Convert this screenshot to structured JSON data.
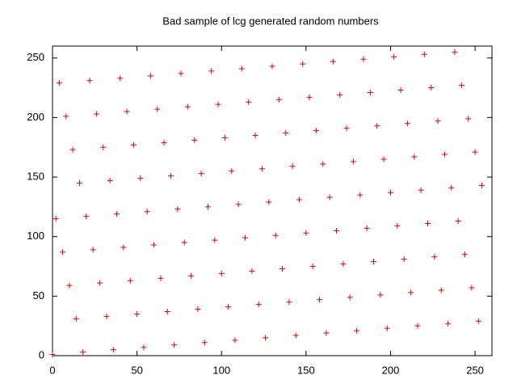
{
  "chart_data": {
    "type": "scatter",
    "title": "Bad sample of lcg generated random numbers",
    "color": "#e00000",
    "marker": "+",
    "xlim": [
      0,
      260
    ],
    "ylim": [
      0,
      260
    ],
    "xticks": [
      0,
      50,
      100,
      150,
      200,
      250
    ],
    "yticks": [
      0,
      50,
      100,
      150,
      200,
      250
    ],
    "x": [
      0,
      2,
      4,
      6,
      8,
      10,
      12,
      14,
      16,
      18,
      20,
      22,
      24,
      26,
      28,
      30,
      32,
      34,
      36,
      38,
      40,
      42,
      44,
      46,
      48,
      50,
      52,
      54,
      56,
      58,
      60,
      62,
      64,
      66,
      68,
      70,
      72,
      74,
      76,
      78,
      80,
      82,
      84,
      86,
      88,
      90,
      92,
      94,
      96,
      98,
      100,
      102,
      104,
      106,
      108,
      110,
      112,
      114,
      116,
      118,
      120,
      122,
      124,
      126,
      128,
      130,
      132,
      134,
      136,
      138,
      140,
      142,
      144,
      146,
      148,
      150,
      152,
      154,
      156,
      158,
      160,
      162,
      164,
      166,
      168,
      170,
      172,
      174,
      176,
      178,
      180,
      182,
      184,
      186,
      188,
      190,
      192,
      194,
      196,
      198,
      200,
      202,
      204,
      206,
      208,
      210,
      212,
      214,
      216,
      218,
      220,
      222,
      224,
      226,
      228,
      230,
      232,
      234,
      236,
      238,
      240,
      242,
      244,
      246,
      248,
      250,
      252,
      254
    ],
    "values": [
      1,
      115,
      229,
      87,
      201,
      59,
      173,
      31,
      145,
      3,
      117,
      231,
      89,
      203,
      61,
      175,
      33,
      147,
      5,
      119,
      233,
      91,
      205,
      63,
      177,
      35,
      149,
      7,
      121,
      235,
      93,
      207,
      65,
      179,
      37,
      151,
      9,
      123,
      237,
      95,
      209,
      67,
      181,
      39,
      153,
      11,
      125,
      239,
      97,
      211,
      69,
      183,
      41,
      155,
      13,
      127,
      241,
      99,
      213,
      71,
      185,
      43,
      157,
      15,
      129,
      243,
      101,
      215,
      73,
      187,
      45,
      159,
      17,
      131,
      245,
      103,
      217,
      75,
      189,
      47,
      161,
      19,
      133,
      247,
      105,
      219,
      77,
      191,
      49,
      163,
      21,
      135,
      249,
      107,
      221,
      79,
      193,
      51,
      165,
      23,
      137,
      251,
      109,
      223,
      81,
      195,
      53,
      167,
      25,
      139,
      253,
      111,
      225,
      83,
      197,
      55,
      169,
      27,
      141,
      255,
      113,
      227,
      85,
      199,
      57,
      171,
      29,
      143
    ]
  }
}
